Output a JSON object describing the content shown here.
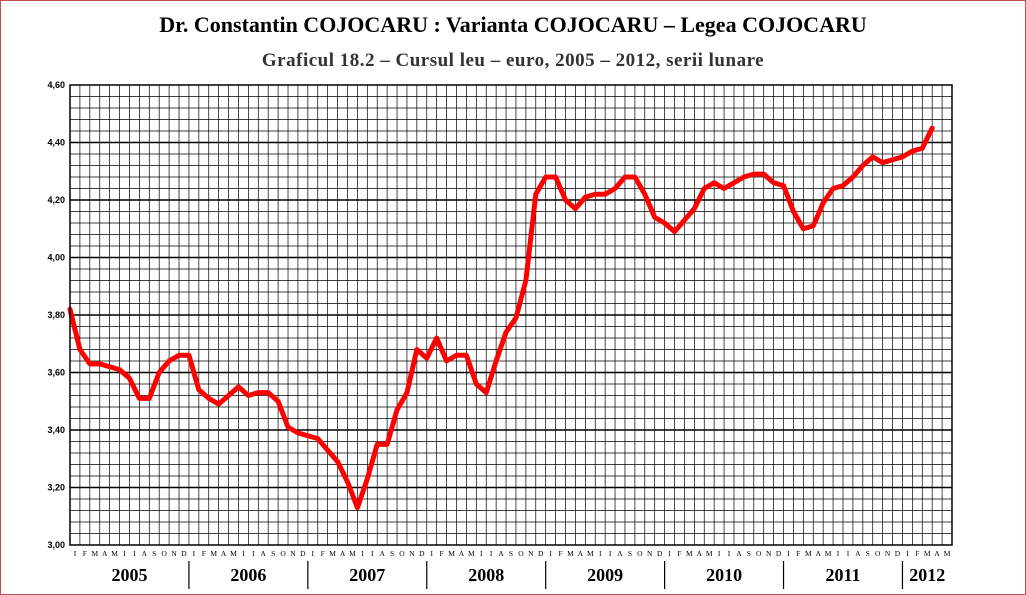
{
  "header": {
    "title": "Dr. Constantin COJOCARU : Varianta COJOCARU – Legea COJOCARU",
    "subtitle": "Graficul 18.2 – Cursul  leu – euro, 2005 – 2012, serii  lunare"
  },
  "chart_data": {
    "type": "line",
    "title": "Graficul 18.2 – Cursul  leu – euro, 2005 – 2012, serii  lunare",
    "xlabel": "",
    "ylabel": "",
    "ylim": [
      3.0,
      4.6
    ],
    "y_ticks": [
      "3,00",
      "3,20",
      "3,40",
      "3,60",
      "3,80",
      "4,00",
      "4,20",
      "4,40",
      "4,60"
    ],
    "month_letters": [
      "I",
      "F",
      "M",
      "A",
      "M",
      "I",
      "I",
      "A",
      "S",
      "O",
      "N",
      "D"
    ],
    "years": [
      "2005",
      "2006",
      "2007",
      "2008",
      "2009",
      "2010",
      "2011",
      "2012"
    ],
    "grid": true,
    "line_color": "#ff0000",
    "series": [
      {
        "values": [
          3.82,
          3.68,
          3.63,
          3.63,
          3.62,
          3.61,
          3.58,
          3.51,
          3.51,
          3.6,
          3.64,
          3.66,
          3.66,
          3.54,
          3.51,
          3.49,
          3.52,
          3.55,
          3.52,
          3.53,
          3.53,
          3.5,
          3.41,
          3.39,
          3.38,
          3.37,
          3.33,
          3.29,
          3.22,
          3.13,
          3.23,
          3.35,
          3.35,
          3.47,
          3.53,
          3.68,
          3.65,
          3.72,
          3.64,
          3.66,
          3.66,
          3.56,
          3.53,
          3.64,
          3.74,
          3.79,
          3.92,
          4.22,
          4.28,
          4.28,
          4.2,
          4.17,
          4.21,
          4.22,
          4.22,
          4.24,
          4.28,
          4.28,
          4.22,
          4.14,
          4.12,
          4.09,
          4.13,
          4.17,
          4.24,
          4.26,
          4.24,
          4.26,
          4.28,
          4.29,
          4.29,
          4.26,
          4.25,
          4.16,
          4.1,
          4.11,
          4.19,
          4.24,
          4.25,
          4.28,
          4.32,
          4.35,
          4.33,
          4.34,
          4.35,
          4.37,
          4.38,
          4.45
        ]
      }
    ]
  }
}
